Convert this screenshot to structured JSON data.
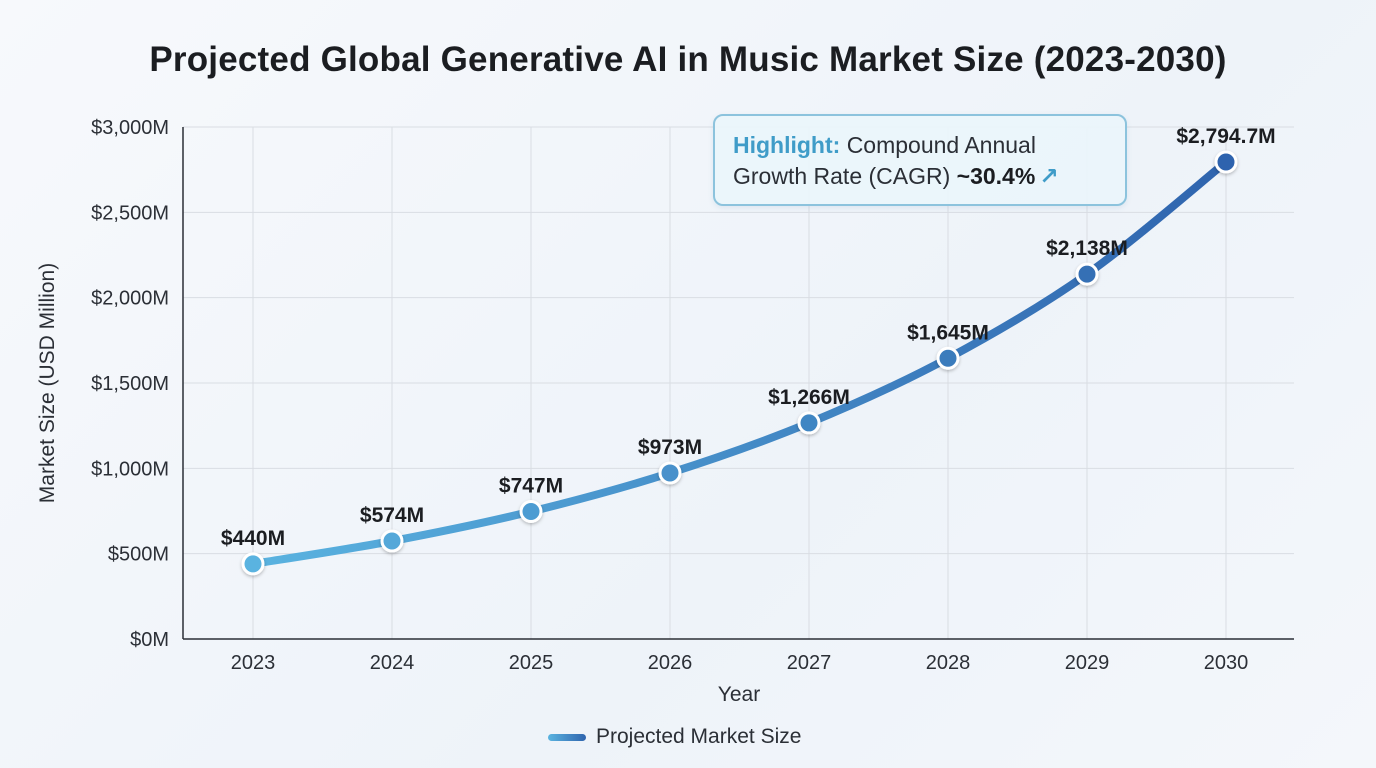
{
  "chart_data": {
    "type": "line",
    "title": "Projected Global Generative AI in Music Market Size (2023-2030)",
    "xlabel": "Year",
    "ylabel": "Market Size (USD Million)",
    "categories": [
      "2023",
      "2024",
      "2025",
      "2026",
      "2027",
      "2028",
      "2029",
      "2030"
    ],
    "series": [
      {
        "name": "Projected Market Size",
        "values": [
          440,
          574,
          747,
          973,
          1266,
          1645,
          2138,
          2794.7
        ],
        "data_labels": [
          "$440M",
          "$574M",
          "$747M",
          "$973M",
          "$1,266M",
          "$1,645M",
          "$2,138M",
          "$2,794.7M"
        ]
      }
    ],
    "ylim": [
      0,
      3000
    ],
    "yticks": [
      0,
      500,
      1000,
      1500,
      2000,
      2500,
      3000
    ],
    "ytick_labels": [
      "$0M",
      "$500M",
      "$1,000M",
      "$1,500M",
      "$2,000M",
      "$2,500M",
      "$3,000M"
    ],
    "grid": true,
    "legend_position": "bottom-center",
    "colors": {
      "line_start": "#5ab3e0",
      "line_end": "#2f64ae",
      "grid": "#d9dde3",
      "axis": "#2b2f36"
    },
    "annotation": {
      "highlight_label": "Highlight:",
      "text_line1": "Compound Annual",
      "text_line2": "Growth Rate (CAGR)",
      "value": "~30.4%",
      "icon": "trend-up-arrow-icon"
    }
  }
}
